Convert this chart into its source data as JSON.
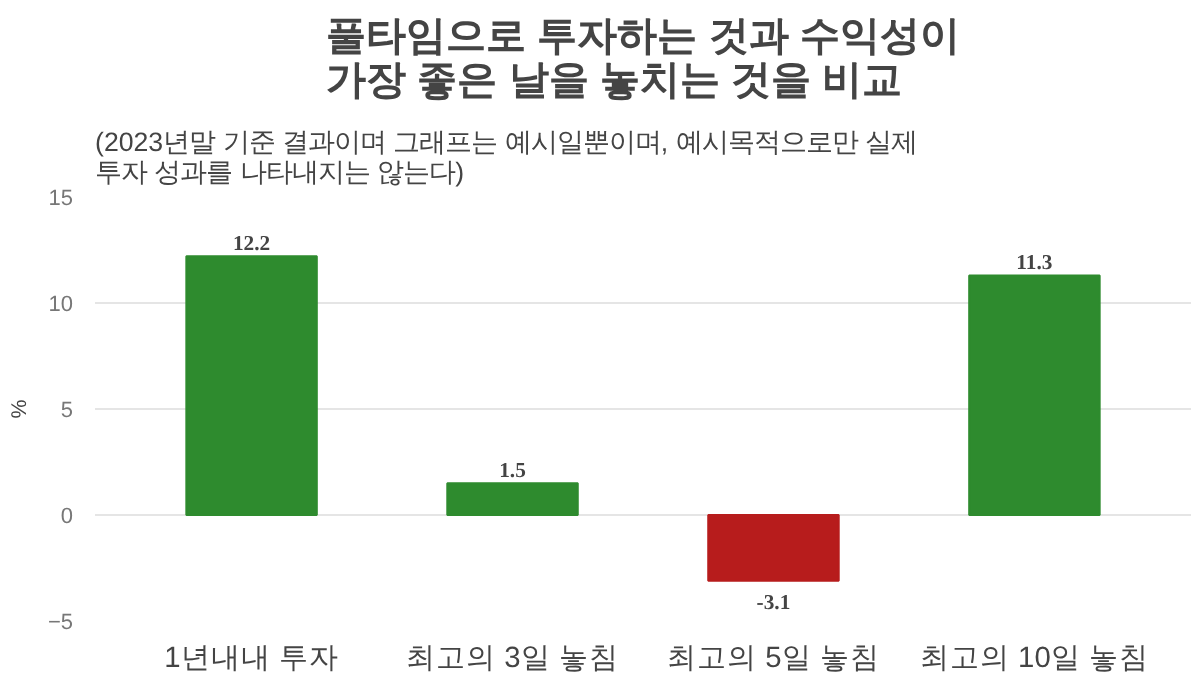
{
  "chart_data": {
    "type": "bar",
    "title": "풀타임으로 투자하는 것과 수익성이\n가장 좋은 날을 놓치는 것을 비교",
    "subtitle": "(2023년말 기준 결과이며 그래프는 예시일뿐이며, 예시목적으로만 실제\n투자 성과를 나타내지는 않는다)",
    "ylabel": "%",
    "categories": [
      "1년내내 투자",
      "최고의 3일 놓침",
      "최고의 5일 놓침",
      "최고의 10일 놓침"
    ],
    "values": [
      12.2,
      1.5,
      -3.1,
      11.3
    ],
    "colors": [
      "#2e8b2e",
      "#2e8b2e",
      "#b71c1c",
      "#2e8b2e"
    ],
    "ylim": [
      -5,
      15
    ],
    "yticks": [
      -5,
      0,
      5,
      10,
      15
    ],
    "grid": "y",
    "data_labels": true
  }
}
